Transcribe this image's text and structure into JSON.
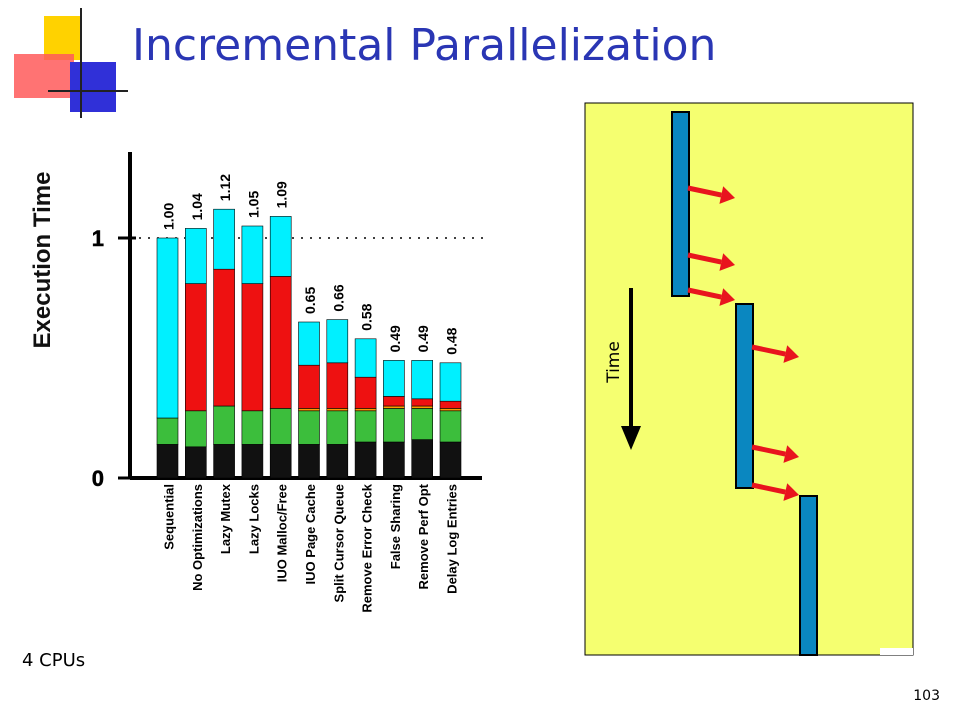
{
  "slide": {
    "title": "Incremental Parallelization",
    "cpu_note": "4 CPUs",
    "page_number": "103"
  },
  "colors": {
    "title": "#2a36b4",
    "cyan": "#00f0ff",
    "red": "#ee1111",
    "orange": "#ff9900",
    "green": "#3cbe3c",
    "black": "#111111",
    "timeline_bg": "#f5ff70",
    "timeline_bar": "#0a87c0",
    "arrow": "#e8141e"
  },
  "timeline": {
    "time_label": "Time",
    "bars": 3,
    "arrows": 6
  },
  "chart_data": {
    "type": "bar",
    "stacked": true,
    "ylabel": "Execution Time",
    "ylim": [
      0,
      1.3
    ],
    "yticks": [
      "0",
      "1"
    ],
    "reference_line_y": 1,
    "categories": [
      "Sequential",
      "No Optimizations",
      "Lazy Mutex",
      "Lazy Locks",
      "IUO Malloc/Free",
      "IUO Page Cache",
      "Split Cursor Queue",
      "Remove Error Check",
      "False Sharing",
      "Remove Perf Opt",
      "Delay Log Entries"
    ],
    "totals": [
      1.0,
      1.04,
      1.12,
      1.05,
      1.09,
      0.65,
      0.66,
      0.58,
      0.49,
      0.49,
      0.48
    ],
    "total_labels": [
      "1.00",
      "1.04",
      "1.12",
      "1.05",
      "1.09",
      "0.65",
      "0.66",
      "0.58",
      "0.49",
      "0.49",
      "0.48"
    ],
    "segments": [
      {
        "color": "black",
        "values": [
          0.14,
          0.13,
          0.14,
          0.14,
          0.14,
          0.14,
          0.14,
          0.15,
          0.15,
          0.16,
          0.15
        ]
      },
      {
        "color": "green",
        "values": [
          0.11,
          0.15,
          0.16,
          0.14,
          0.15,
          0.14,
          0.14,
          0.13,
          0.14,
          0.13,
          0.13
        ]
      },
      {
        "color": "orange",
        "values": [
          0.0,
          0.0,
          0.0,
          0.0,
          0.0,
          0.01,
          0.01,
          0.01,
          0.01,
          0.01,
          0.01
        ]
      },
      {
        "color": "red",
        "values": [
          0.0,
          0.53,
          0.57,
          0.53,
          0.55,
          0.18,
          0.19,
          0.13,
          0.04,
          0.03,
          0.03
        ]
      },
      {
        "color": "cyan",
        "values": [
          0.75,
          0.23,
          0.25,
          0.24,
          0.25,
          0.18,
          0.18,
          0.16,
          0.15,
          0.16,
          0.16
        ]
      }
    ]
  }
}
